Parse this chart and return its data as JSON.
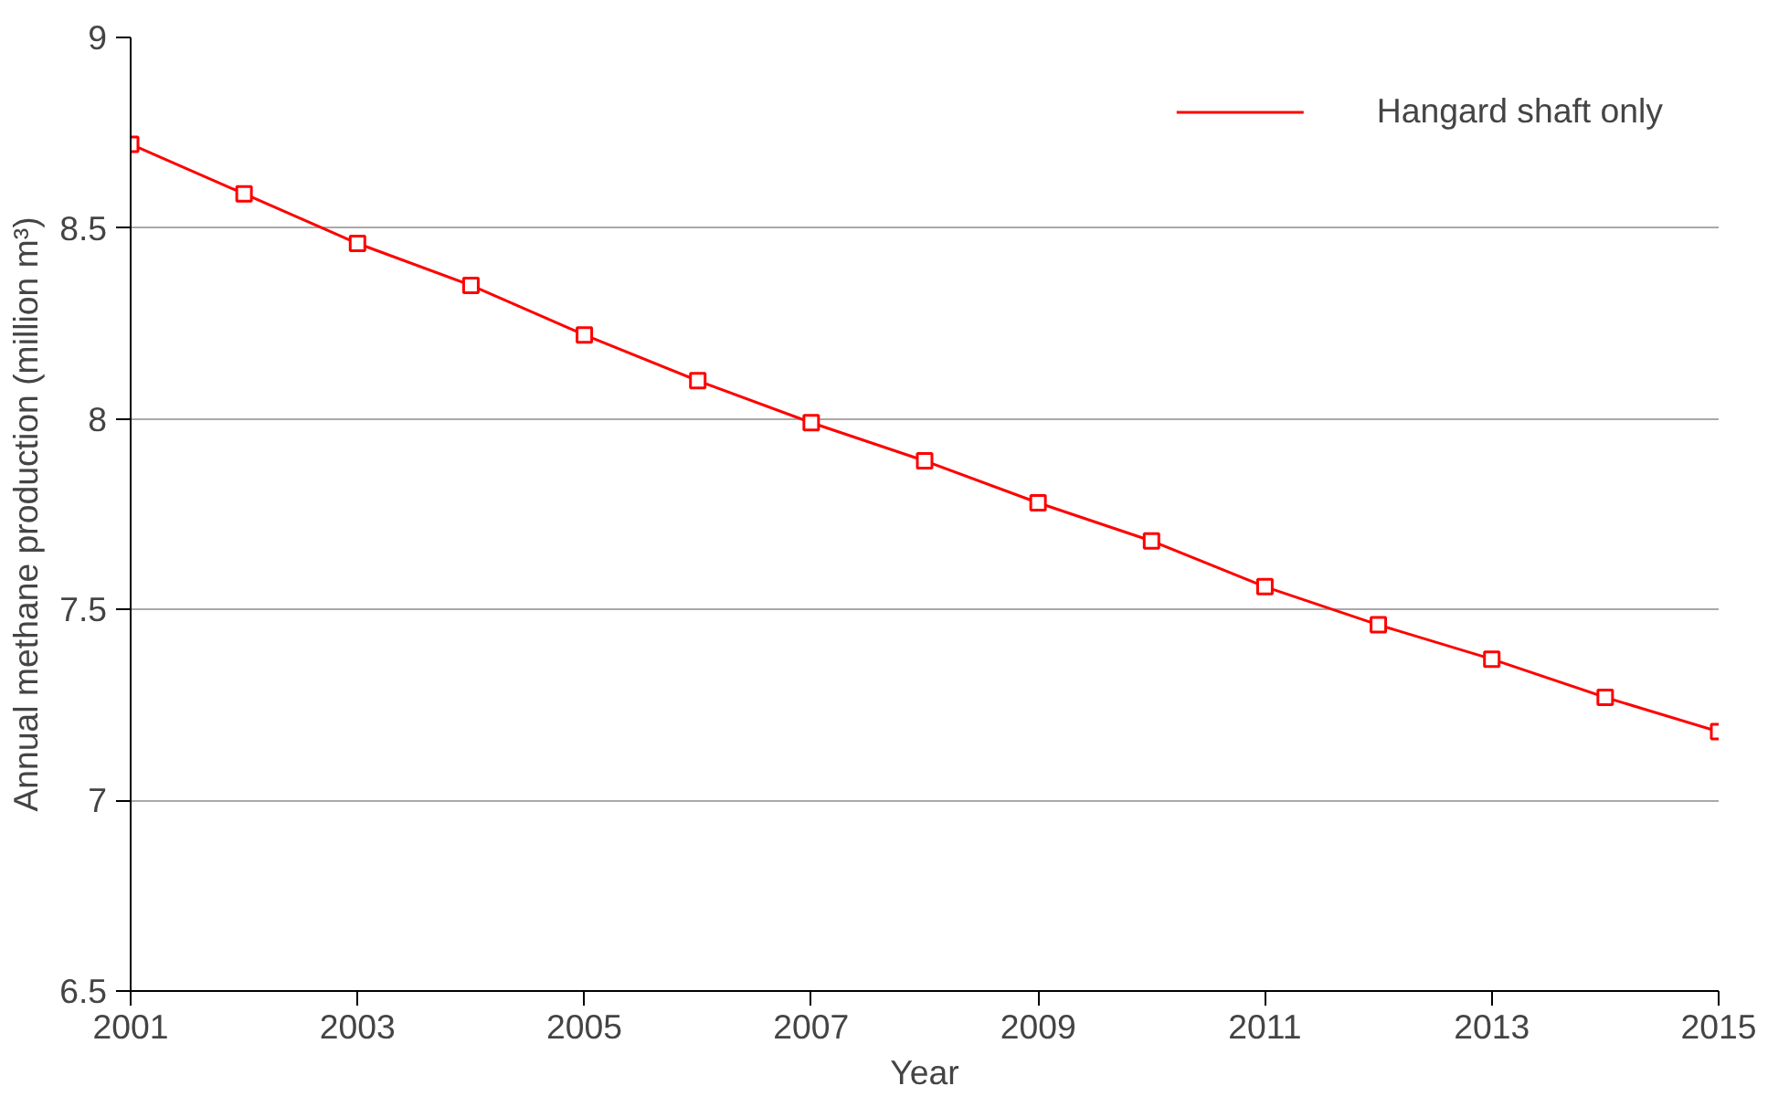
{
  "chart_data": {
    "type": "line",
    "xlabel": "Year",
    "ylabel": "Annual methane production (million m³)",
    "x": [
      2001,
      2002,
      2003,
      2004,
      2005,
      2006,
      2007,
      2008,
      2009,
      2010,
      2011,
      2012,
      2013,
      2014,
      2015
    ],
    "series": [
      {
        "name": "Hangard shaft only",
        "color": "#ff0000",
        "values": [
          8.72,
          8.59,
          8.46,
          8.35,
          8.22,
          8.1,
          7.99,
          7.89,
          7.78,
          7.68,
          7.56,
          7.46,
          7.37,
          7.27,
          7.18
        ]
      }
    ],
    "xlim": [
      2001,
      2015
    ],
    "xticks": [
      2001,
      2003,
      2005,
      2007,
      2009,
      2011,
      2013,
      2015
    ],
    "ylim": [
      6.5,
      9
    ],
    "yticks": [
      6.5,
      7,
      7.5,
      8,
      8.5,
      9
    ],
    "grid": "y",
    "legend": "top right",
    "marker": "square",
    "line_style": "solid"
  }
}
